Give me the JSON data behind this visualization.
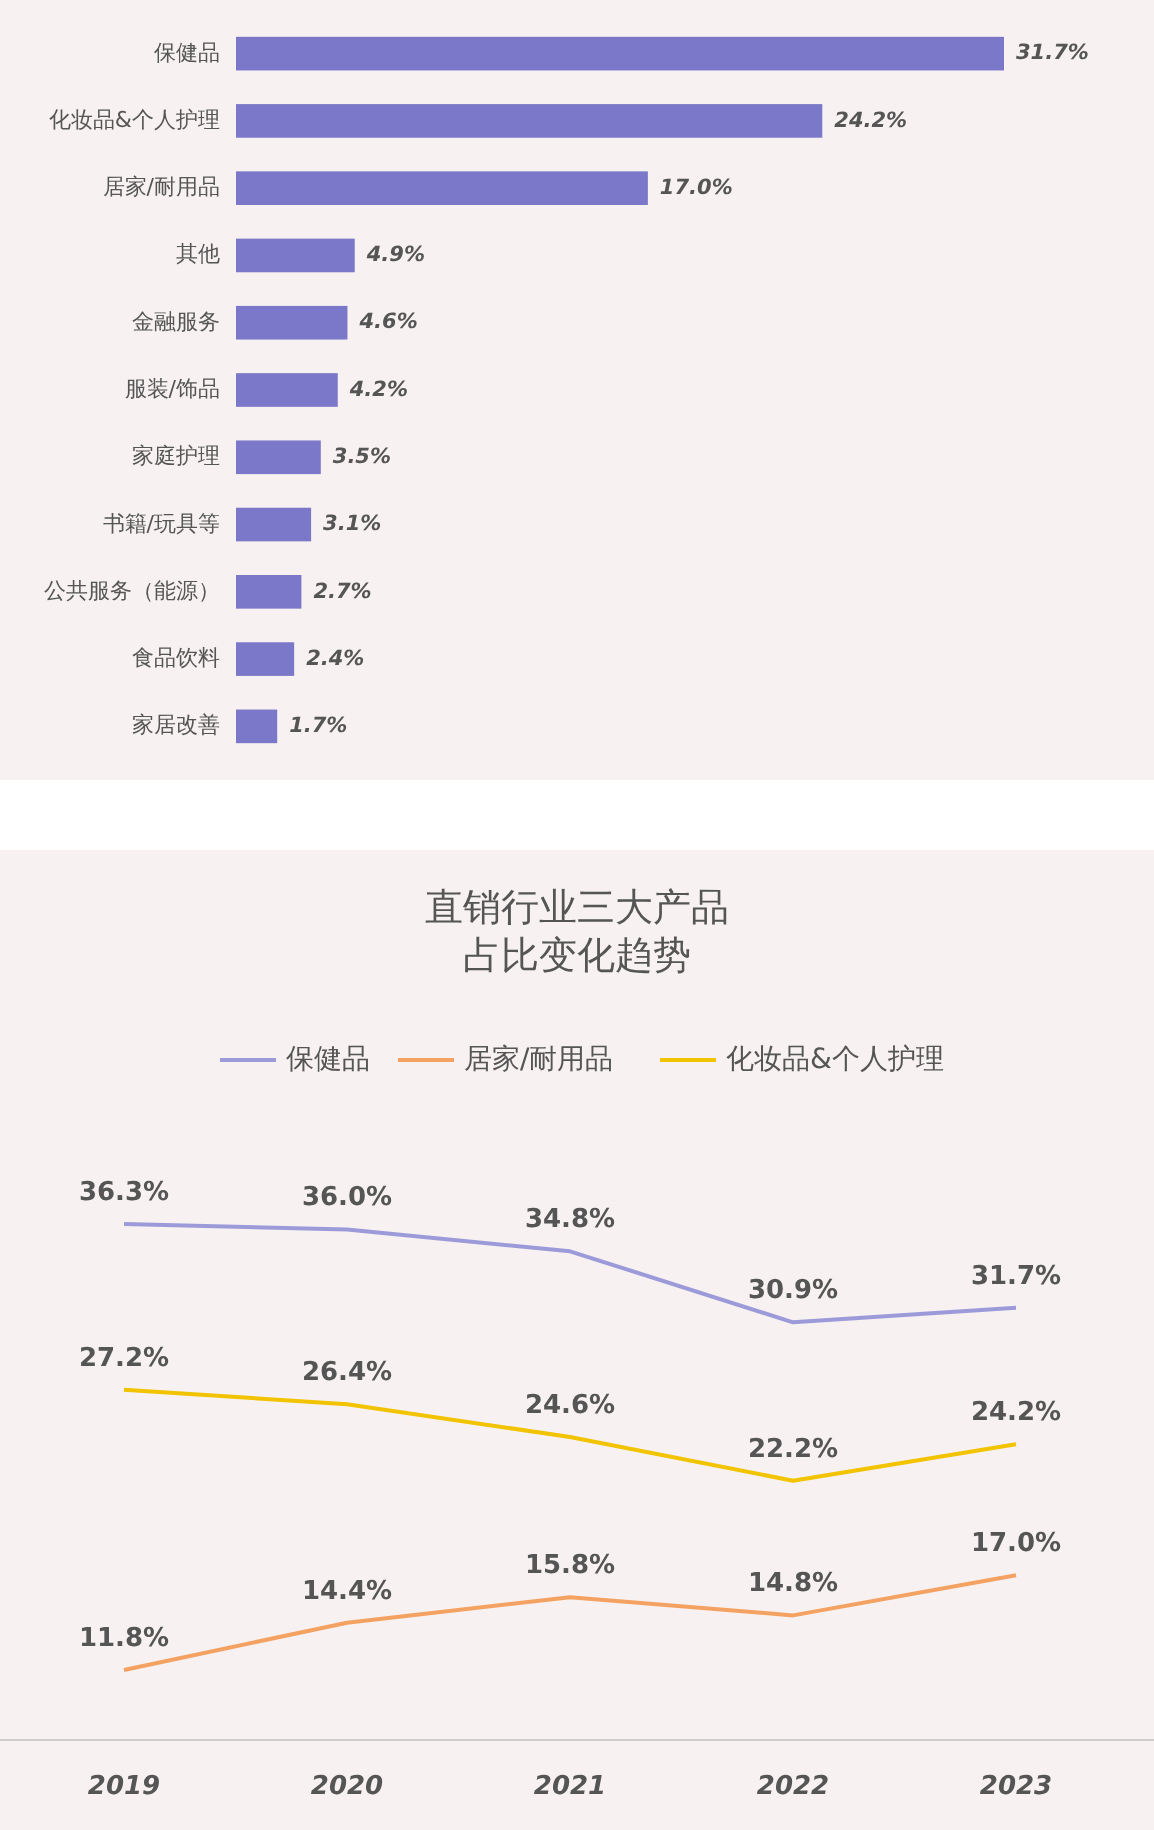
{
  "chart_data": [
    {
      "type": "bar",
      "orientation": "horizontal",
      "categories": [
        "保健品",
        "化妆品&个人护理",
        "居家/耐用品",
        "其他",
        "金融服务",
        "服装/饰品",
        "家庭护理",
        "书籍/玩具等",
        "公共服务（能源）",
        "食品饮料",
        "家居改善"
      ],
      "values": [
        31.7,
        24.2,
        17.0,
        4.9,
        4.6,
        4.2,
        3.5,
        3.1,
        2.7,
        2.4,
        1.7
      ],
      "value_labels": [
        "31.7%",
        "24.2%",
        "17.0%",
        "4.9%",
        "4.6%",
        "4.2%",
        "3.5%",
        "3.1%",
        "2.7%",
        "2.4%",
        "1.7%"
      ],
      "color": "#7b78c9",
      "tick_labels": "y",
      "grid": false
    },
    {
      "type": "line",
      "title": "直销行业三大产品占比变化趋势",
      "categories": [
        "2019",
        "2020",
        "2021",
        "2022",
        "2023"
      ],
      "series": [
        {
          "name": "保健品",
          "color": "#9c9ad9",
          "values": [
            36.3,
            36.0,
            34.8,
            30.9,
            31.7
          ],
          "value_labels": [
            "36.3%",
            "36.0%",
            "34.8%",
            "30.9%",
            "31.7%"
          ]
        },
        {
          "name": "居家/耐用品",
          "color": "#f4a261",
          "values": [
            11.8,
            14.4,
            15.8,
            14.8,
            17.0
          ],
          "value_labels": [
            "11.8%",
            "14.4%",
            "15.8%",
            "14.8%",
            "17.0%"
          ]
        },
        {
          "name": "化妆品&个人护理",
          "color": "#f2c300",
          "values": [
            27.2,
            26.4,
            24.6,
            22.2,
            24.2
          ],
          "value_labels": [
            "27.2%",
            "26.4%",
            "24.6%",
            "22.2%",
            "24.2%"
          ]
        }
      ],
      "legend": "top",
      "tick_labels": "x",
      "grid": false,
      "marker": "none",
      "line_style": "solid"
    }
  ]
}
